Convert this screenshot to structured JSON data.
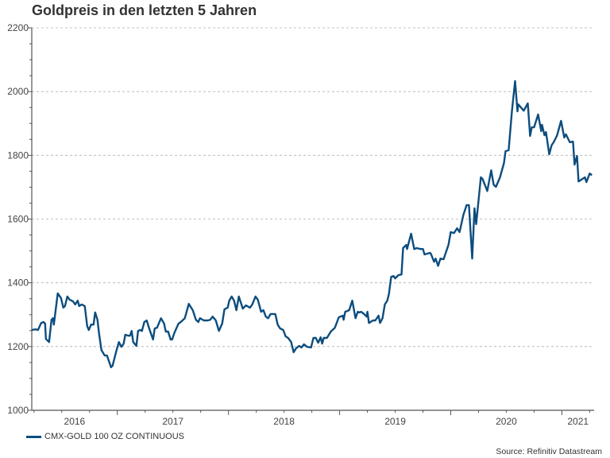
{
  "chart_data": {
    "type": "line",
    "title": "Goldpreis in den letzten 5 Jahren",
    "xlabel": "",
    "ylabel": "",
    "xlim": [
      2016.23,
      2021.29
    ],
    "ylim": [
      1000,
      2200
    ],
    "yticks": [
      1000,
      1200,
      1400,
      1600,
      1800,
      2000,
      2200
    ],
    "xticks": [
      "2016",
      "2017",
      "2018",
      "2019",
      "2020",
      "2021"
    ],
    "grid": true,
    "legend_position": "bottom-left",
    "source": "Source: Refinitiv Datastream",
    "colors": {
      "line": "#0d4d7e",
      "grid": "#b0b0b0",
      "axis": "#555555"
    },
    "series": [
      {
        "name": "CMX-GOLD 100 OZ CONTINUOUS",
        "x": [
          2016.229,
          2016.264,
          2016.286,
          2016.314,
          2016.336,
          2016.35,
          2016.357,
          2016.386,
          2016.407,
          2016.421,
          2016.429,
          2016.464,
          2016.493,
          2016.514,
          2016.529,
          2016.55,
          2016.571,
          2016.6,
          2016.621,
          2016.643,
          2016.657,
          2016.679,
          2016.707,
          2016.729,
          2016.743,
          2016.764,
          2016.786,
          2016.8,
          2016.821,
          2016.836,
          2016.857,
          2016.886,
          2016.907,
          2016.943,
          2016.957,
          2016.993,
          2017.014,
          2017.036,
          2017.057,
          2017.071,
          2017.1,
          2017.114,
          2017.129,
          2017.143,
          2017.171,
          2017.186,
          2017.207,
          2017.221,
          2017.243,
          2017.264,
          2017.286,
          2017.321,
          2017.336,
          2017.357,
          2017.393,
          2017.421,
          2017.436,
          2017.457,
          2017.479,
          2017.493,
          2017.514,
          2017.55,
          2017.571,
          2017.607,
          2017.643,
          2017.679,
          2017.707,
          2017.729,
          2017.743,
          2017.779,
          2017.814,
          2017.836,
          2017.857,
          2017.886,
          2017.914,
          2017.943,
          2017.964,
          2017.993,
          2018.007,
          2018.029,
          2018.05,
          2018.071,
          2018.093,
          2018.129,
          2018.157,
          2018.193,
          2018.214,
          2018.243,
          2018.264,
          2018.293,
          2018.314,
          2018.336,
          2018.357,
          2018.379,
          2018.421,
          2018.443,
          2018.464,
          2018.493,
          2018.514,
          2018.536,
          2018.564,
          2018.586,
          2018.607,
          2018.636,
          2018.657,
          2018.679,
          2018.707,
          2018.743,
          2018.764,
          2018.786,
          2018.807,
          2018.829,
          2018.843,
          2018.857,
          2018.886,
          2018.921,
          2018.957,
          2018.993,
          2019.029,
          2019.036,
          2019.05,
          2019.086,
          2019.114,
          2019.143,
          2019.164,
          2019.179,
          2019.193,
          2019.214,
          2019.243,
          2019.25,
          2019.264,
          2019.3,
          2019.321,
          2019.35,
          2019.364,
          2019.386,
          2019.407,
          2019.429,
          2019.443,
          2019.464,
          2019.486,
          2019.5,
          2019.529,
          2019.557,
          2019.571,
          2019.6,
          2019.607,
          2019.643,
          2019.671,
          2019.693,
          2019.729,
          2019.75,
          2019.764,
          2019.814,
          2019.821,
          2019.85,
          2019.864,
          2019.886,
          2019.907,
          2019.936,
          2019.979,
          2020.0,
          2020.029,
          2020.057,
          2020.079,
          2020.114,
          2020.143,
          2020.164,
          2020.193,
          2020.214,
          2020.229,
          2020.271,
          2020.286,
          2020.329,
          2020.364,
          2020.386,
          2020.407,
          2020.443,
          2020.479,
          2020.493,
          2020.521,
          2020.55,
          2020.579,
          2020.6,
          2020.607,
          2020.657,
          2020.693,
          2020.714,
          2020.729,
          2020.75,
          2020.786,
          2020.814,
          2020.821,
          2020.843,
          2020.857,
          2020.886,
          2020.907,
          2020.929,
          2020.957,
          2020.993,
          2021.021,
          2021.036,
          2021.071,
          2021.1,
          2021.114,
          2021.136,
          2021.15,
          2021.207,
          2021.221,
          2021.25,
          2021.271
        ],
        "y": [
          1252,
          1254,
          1252,
          1274,
          1277,
          1272,
          1224,
          1214,
          1284,
          1289,
          1269,
          1367,
          1352,
          1322,
          1327,
          1357,
          1347,
          1342,
          1332,
          1344,
          1327,
          1332,
          1327,
          1264,
          1252,
          1269,
          1269,
          1307,
          1284,
          1239,
          1189,
          1172,
          1172,
          1135,
          1140,
          1189,
          1214,
          1199,
          1209,
          1237,
          1234,
          1234,
          1249,
          1214,
          1202,
          1249,
          1252,
          1249,
          1277,
          1282,
          1257,
          1222,
          1257,
          1259,
          1289,
          1272,
          1247,
          1247,
          1222,
          1222,
          1244,
          1272,
          1277,
          1289,
          1334,
          1314,
          1284,
          1277,
          1289,
          1282,
          1282,
          1284,
          1294,
          1282,
          1249,
          1272,
          1317,
          1322,
          1344,
          1357,
          1344,
          1314,
          1357,
          1319,
          1329,
          1322,
          1332,
          1357,
          1347,
          1309,
          1314,
          1294,
          1289,
          1302,
          1302,
          1269,
          1257,
          1252,
          1232,
          1227,
          1214,
          1182,
          1194,
          1202,
          1197,
          1207,
          1199,
          1197,
          1227,
          1227,
          1212,
          1229,
          1209,
          1227,
          1227,
          1247,
          1259,
          1292,
          1297,
          1284,
          1309,
          1314,
          1344,
          1289,
          1309,
          1307,
          1309,
          1304,
          1294,
          1309,
          1274,
          1282,
          1282,
          1297,
          1274,
          1289,
          1332,
          1344,
          1364,
          1419,
          1421,
          1414,
          1424,
          1426,
          1509,
          1519,
          1506,
          1554,
          1506,
          1509,
          1506,
          1506,
          1489,
          1494,
          1491,
          1466,
          1476,
          1453,
          1476,
          1474,
          1519,
          1559,
          1556,
          1571,
          1559,
          1614,
          1644,
          1644,
          1476,
          1634,
          1584,
          1731,
          1726,
          1688,
          1753,
          1708,
          1701,
          1731,
          1776,
          1813,
          1816,
          1938,
          2033,
          1938,
          1960,
          1940,
          1963,
          1861,
          1888,
          1888,
          1928,
          1876,
          1896,
          1863,
          1873,
          1803,
          1831,
          1843,
          1863,
          1908,
          1856,
          1866,
          1841,
          1843,
          1771,
          1798,
          1718,
          1731,
          1716,
          1743,
          1738
        ]
      }
    ]
  }
}
